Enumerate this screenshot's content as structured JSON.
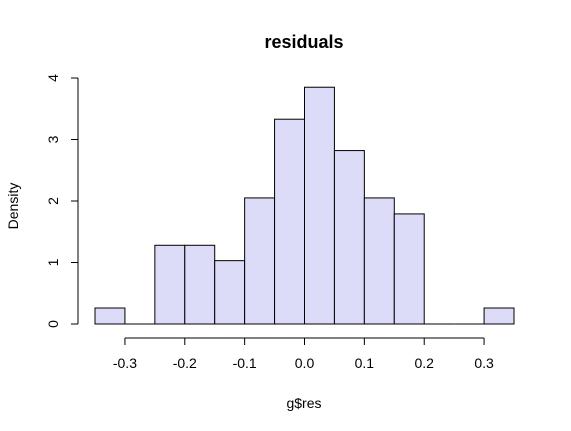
{
  "colors": {
    "bar_fill": "#dcdcf8",
    "bar_stroke": "#000000",
    "background": "#ffffff"
  },
  "chart_data": {
    "type": "bar",
    "subtype": "histogram",
    "title": "residuals",
    "xlabel": "g$res",
    "ylabel": "Density",
    "bin_edges": [
      -0.35,
      -0.3,
      -0.25,
      -0.2,
      -0.15,
      -0.1,
      -0.05,
      0.0,
      0.05,
      0.1,
      0.15,
      0.2,
      0.25,
      0.3,
      0.35
    ],
    "values": [
      0.26,
      0.0,
      1.28,
      1.28,
      1.03,
      2.05,
      3.33,
      3.85,
      2.82,
      2.05,
      1.79,
      0.0,
      0.0,
      0.26
    ],
    "xlim": [
      -0.35,
      0.35
    ],
    "ylim": [
      0,
      4
    ],
    "xticks": [
      -0.3,
      -0.2,
      -0.1,
      0.0,
      0.1,
      0.2,
      0.3
    ],
    "xtick_labels": [
      "-0.3",
      "-0.2",
      "-0.1",
      "0.0",
      "0.1",
      "0.2",
      "0.3"
    ],
    "yticks": [
      0,
      1,
      2,
      3,
      4
    ],
    "ytick_labels": [
      "0",
      "1",
      "2",
      "3",
      "4"
    ],
    "grid": false,
    "legend": "none"
  }
}
